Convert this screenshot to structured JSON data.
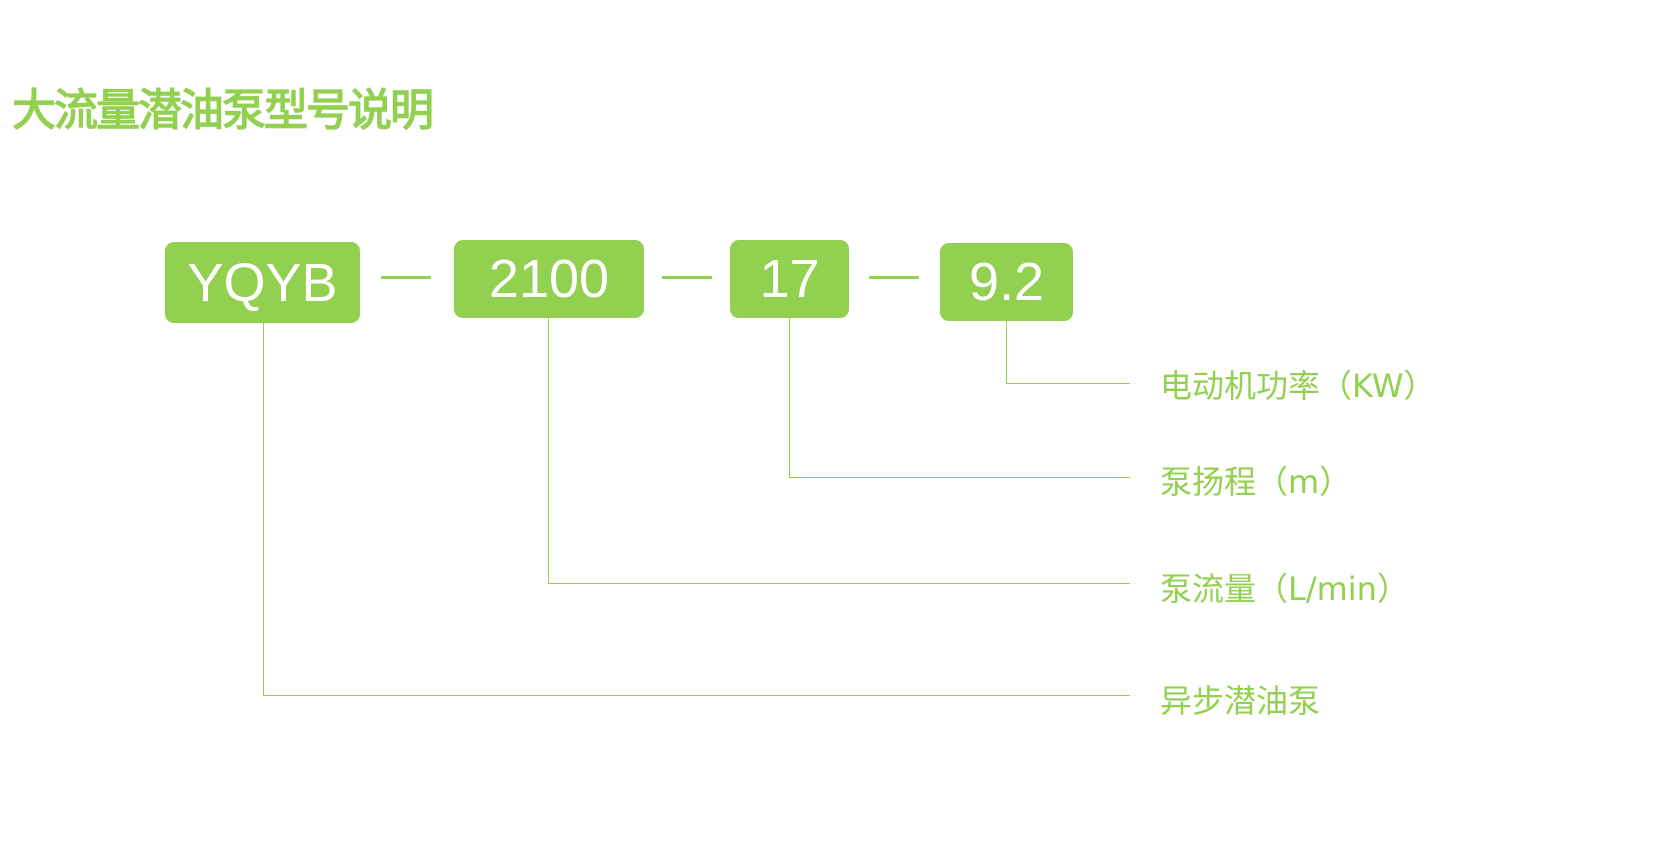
{
  "title": "大流量潜油泵型号说明",
  "accent_color": "#92d050",
  "model_parts": [
    "YQYB",
    "2100",
    "17",
    "9.2"
  ],
  "labels": {
    "power": "电动机功率（KW）",
    "head": "泵扬程（m）",
    "flow": "泵流量（L/min）",
    "type": "异步潜油泵"
  }
}
